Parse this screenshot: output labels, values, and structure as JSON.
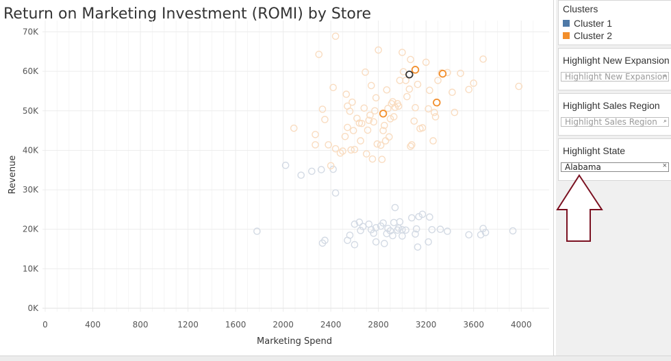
{
  "title": "Return on Marketing Investment (ROMI) by Store",
  "colors": {
    "cluster1": "#4e79a7",
    "cluster2": "#f28e2b",
    "cluster1_faded": "#d3dae4",
    "cluster2_faded": "#f9dcc0",
    "highlighted_selected": "#333333",
    "arrow_outline": "#7a1020"
  },
  "legend": {
    "title": "Clusters",
    "items": [
      {
        "label": "Cluster 1",
        "color": "#4e79a7"
      },
      {
        "label": "Cluster 2",
        "color": "#f28e2b"
      }
    ]
  },
  "filters": {
    "expansion": {
      "title": "Highlight New Expansion",
      "placeholder": "Highlight New Expansion",
      "icon": "search-icon"
    },
    "region": {
      "title": "Highlight Sales Region",
      "placeholder": "Highlight Sales Region",
      "icon": "search-icon"
    },
    "state": {
      "title": "Highlight State",
      "value": "Alabama",
      "icon": "clear-icon"
    }
  },
  "annotation": {
    "icon": "up-arrow-icon"
  },
  "chart_data": {
    "type": "scatter",
    "title": "Return on Marketing Investment (ROMI) by Store",
    "xlabel": "Marketing Spend",
    "ylabel": "Revenue",
    "xlim": [
      0,
      4200
    ],
    "ylim": [
      0,
      72000
    ],
    "x_ticks": [
      0,
      400,
      800,
      1200,
      1600,
      2000,
      2400,
      2800,
      3200,
      3600,
      4000
    ],
    "x_tick_labels": [
      "0",
      "400",
      "800",
      "1200",
      "1600",
      "2000",
      "2400",
      "2800",
      "3200",
      "3600",
      "4000"
    ],
    "y_ticks": [
      0,
      10000,
      20000,
      30000,
      40000,
      50000,
      60000,
      70000
    ],
    "y_tick_labels": [
      "0K",
      "10K",
      "20K",
      "30K",
      "40K",
      "50K",
      "60K",
      "70K"
    ],
    "grid": true,
    "highlight": "Alabama",
    "series": [
      {
        "name": "Cluster 1",
        "color": "#4e79a7",
        "points": [
          [
            1780,
            19500
          ],
          [
            2020,
            36200
          ],
          [
            2150,
            33700
          ],
          [
            2240,
            34700
          ],
          [
            2320,
            35100
          ],
          [
            2330,
            16500
          ],
          [
            2350,
            17200
          ],
          [
            2420,
            35200
          ],
          [
            2440,
            29200
          ],
          [
            2540,
            17200
          ],
          [
            2560,
            18500
          ],
          [
            2600,
            16100
          ],
          [
            2600,
            21300
          ],
          [
            2640,
            21800
          ],
          [
            2650,
            19700
          ],
          [
            2670,
            20700
          ],
          [
            2720,
            21300
          ],
          [
            2740,
            19900
          ],
          [
            2760,
            19000
          ],
          [
            2780,
            20400
          ],
          [
            2780,
            16800
          ],
          [
            2820,
            20800
          ],
          [
            2840,
            21600
          ],
          [
            2850,
            16400
          ],
          [
            2870,
            18900
          ],
          [
            2880,
            20200
          ],
          [
            2900,
            19600
          ],
          [
            2920,
            18400
          ],
          [
            2930,
            21700
          ],
          [
            2940,
            25500
          ],
          [
            2960,
            19800
          ],
          [
            2970,
            20300
          ],
          [
            2980,
            21900
          ],
          [
            3000,
            19900
          ],
          [
            3000,
            18300
          ],
          [
            3030,
            19800
          ],
          [
            3080,
            22900
          ],
          [
            3110,
            18800
          ],
          [
            3120,
            20100
          ],
          [
            3130,
            15500
          ],
          [
            3140,
            23200
          ],
          [
            3170,
            23800
          ],
          [
            3220,
            16800
          ],
          [
            3230,
            23100
          ],
          [
            3250,
            19900
          ],
          [
            3320,
            20000
          ],
          [
            3380,
            19500
          ],
          [
            3560,
            18600
          ],
          [
            3660,
            18600
          ],
          [
            3680,
            20200
          ],
          [
            3700,
            19200
          ],
          [
            3930,
            19600
          ]
        ]
      },
      {
        "name": "Cluster 2",
        "color": "#f28e2b",
        "points": [
          [
            2090,
            45600
          ],
          [
            2270,
            44000
          ],
          [
            2270,
            41400
          ],
          [
            2300,
            64300
          ],
          [
            2330,
            50400
          ],
          [
            2350,
            47800
          ],
          [
            2380,
            41400
          ],
          [
            2400,
            36100
          ],
          [
            2420,
            55900
          ],
          [
            2440,
            68900
          ],
          [
            2440,
            40400
          ],
          [
            2480,
            39300
          ],
          [
            2500,
            39800
          ],
          [
            2520,
            43500
          ],
          [
            2530,
            54200
          ],
          [
            2540,
            51200
          ],
          [
            2540,
            45800
          ],
          [
            2560,
            49900
          ],
          [
            2570,
            40100
          ],
          [
            2580,
            52200
          ],
          [
            2590,
            45000
          ],
          [
            2600,
            40200
          ],
          [
            2620,
            48100
          ],
          [
            2640,
            46900
          ],
          [
            2650,
            42400
          ],
          [
            2660,
            46800
          ],
          [
            2680,
            50700
          ],
          [
            2690,
            59800
          ],
          [
            2700,
            39100
          ],
          [
            2710,
            45100
          ],
          [
            2720,
            47600
          ],
          [
            2730,
            48900
          ],
          [
            2740,
            56400
          ],
          [
            2750,
            37800
          ],
          [
            2760,
            47200
          ],
          [
            2770,
            50000
          ],
          [
            2780,
            53300
          ],
          [
            2790,
            41600
          ],
          [
            2800,
            65400
          ],
          [
            2820,
            41300
          ],
          [
            2830,
            37700
          ],
          [
            2840,
            45000
          ],
          [
            2850,
            46300
          ],
          [
            2860,
            42400
          ],
          [
            2870,
            55300
          ],
          [
            2880,
            50600
          ],
          [
            2890,
            43400
          ],
          [
            2900,
            48000
          ],
          [
            2910,
            51800
          ],
          [
            2920,
            52300
          ],
          [
            2930,
            48500
          ],
          [
            2940,
            50900
          ],
          [
            2960,
            51800
          ],
          [
            2970,
            51200
          ],
          [
            2980,
            57700
          ],
          [
            3000,
            64800
          ],
          [
            3010,
            59900
          ],
          [
            3030,
            57700
          ],
          [
            3040,
            53600
          ],
          [
            3060,
            55500
          ],
          [
            3070,
            41000
          ],
          [
            3070,
            63000
          ],
          [
            3080,
            41400
          ],
          [
            3100,
            47400
          ],
          [
            3110,
            50800
          ],
          [
            3130,
            56700
          ],
          [
            3150,
            45500
          ],
          [
            3170,
            45700
          ],
          [
            3200,
            62300
          ],
          [
            3220,
            50500
          ],
          [
            3230,
            55200
          ],
          [
            3260,
            42400
          ],
          [
            3270,
            49600
          ],
          [
            3280,
            48500
          ],
          [
            3300,
            57700
          ],
          [
            3330,
            59600
          ],
          [
            3380,
            59700
          ],
          [
            3420,
            54700
          ],
          [
            3440,
            49600
          ],
          [
            3490,
            59500
          ],
          [
            3560,
            55400
          ],
          [
            3600,
            57000
          ],
          [
            3680,
            63100
          ],
          [
            3980,
            56200
          ]
        ]
      }
    ],
    "highlighted_points": [
      {
        "series": "Cluster 2",
        "x": 2840,
        "y": 49300
      },
      {
        "series": "Cluster 2",
        "x": 3110,
        "y": 60400
      },
      {
        "series": "Cluster 2",
        "x": 3290,
        "y": 52100
      },
      {
        "series": "Cluster 2",
        "x": 3340,
        "y": 59400
      },
      {
        "series": "selected",
        "x": 3060,
        "y": 59200
      }
    ]
  }
}
